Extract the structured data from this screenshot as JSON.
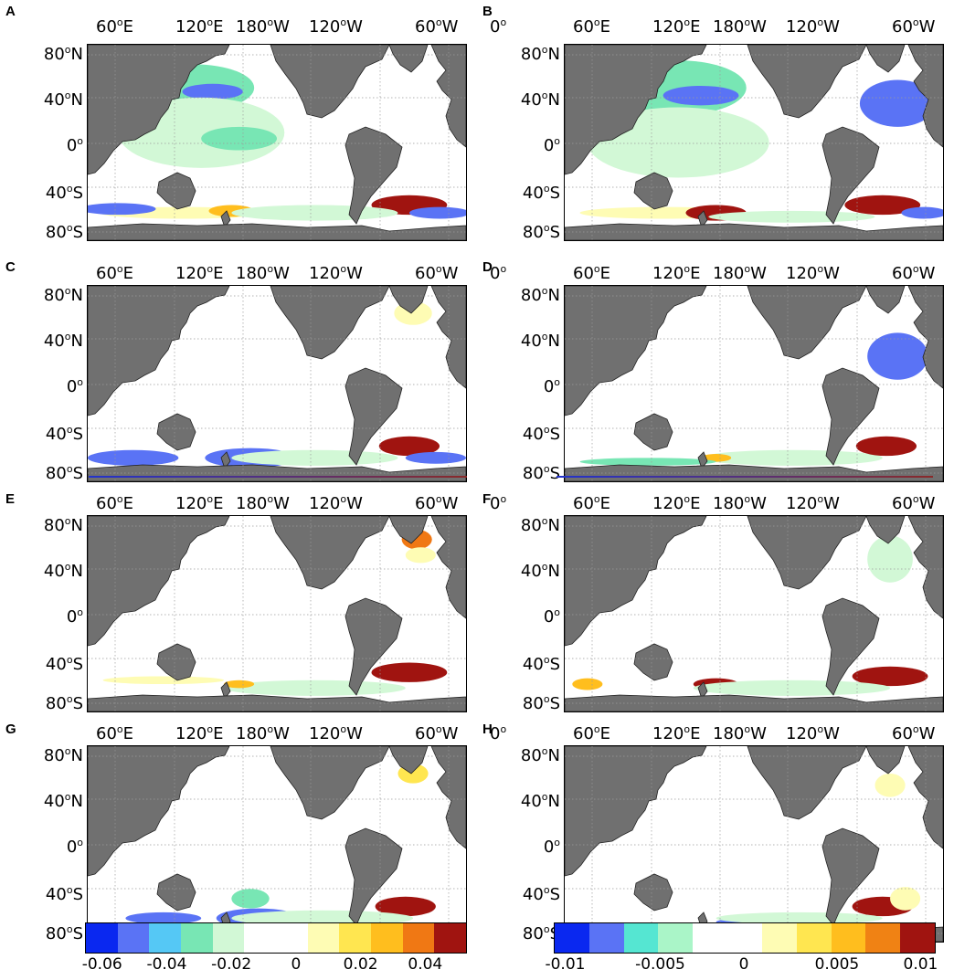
{
  "panels": [
    {
      "letter": "A",
      "scheme": "A"
    },
    {
      "letter": "B",
      "scheme": "B"
    },
    {
      "letter": "C",
      "scheme": "C"
    },
    {
      "letter": "D",
      "scheme": "D"
    },
    {
      "letter": "E",
      "scheme": "E"
    },
    {
      "letter": "F",
      "scheme": "F"
    },
    {
      "letter": "G",
      "scheme": "G"
    },
    {
      "letter": "H",
      "scheme": "H"
    }
  ],
  "lon_ticks": [
    {
      "num": "60",
      "deg": "o",
      "dir": "E"
    },
    {
      "num": "120",
      "deg": "o",
      "dir": "E"
    },
    {
      "num": "180",
      "deg": "o",
      "dir": "W"
    },
    {
      "num": "120",
      "deg": "o",
      "dir": "W"
    },
    {
      "num": "60",
      "deg": "o",
      "dir": "W"
    },
    {
      "num": "0",
      "deg": "o",
      "dir": ""
    }
  ],
  "lat_ticks": [
    {
      "num": "80",
      "deg": "o",
      "dir": "N"
    },
    {
      "num": "40",
      "deg": "o",
      "dir": "N"
    },
    {
      "num": "0",
      "deg": "o",
      "dir": ""
    },
    {
      "num": "40",
      "deg": "o",
      "dir": "S"
    },
    {
      "num": "80",
      "deg": "o",
      "dir": "S"
    }
  ],
  "colorbar_left": {
    "colors": [
      "#0a28f0",
      "#5a73f5",
      "#55c8f5",
      "#78e6b4",
      "#d2f8d6",
      "#ffffff",
      "#ffffff",
      "#fefcb4",
      "#ffe650",
      "#ffbe1e",
      "#f07814",
      "#a01410"
    ],
    "ticks": [
      "-0.06",
      "-0.04",
      "-0.02",
      "0",
      "0.02",
      "0.04"
    ]
  },
  "colorbar_right": {
    "colors": [
      "#0a28f0",
      "#5a73f5",
      "#55e6d2",
      "#aaf5c8",
      "#ffffff",
      "#ffffff",
      "#fefcb4",
      "#ffe650",
      "#ffbe1e",
      "#f08214",
      "#a01410"
    ],
    "ticks": [
      "-0.01",
      "-0.005",
      "0",
      "0.005",
      "0.01"
    ]
  },
  "palette": {
    "land": "#707070",
    "grid": "#9a9a9a",
    "ocean": "#ffffff"
  }
}
